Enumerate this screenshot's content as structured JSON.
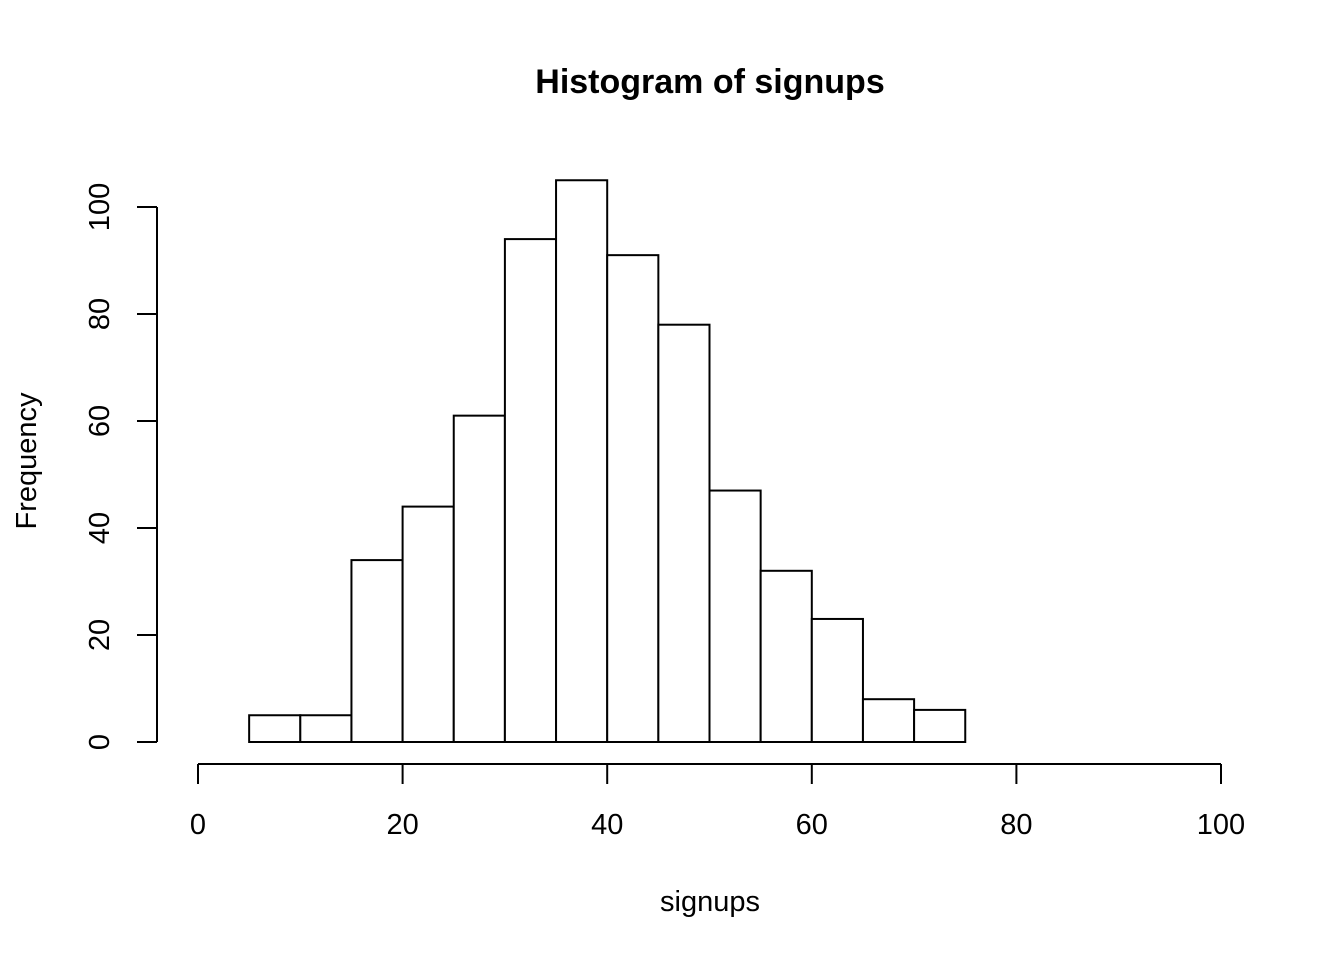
{
  "chart_data": {
    "type": "bar",
    "title": "Histogram of signups",
    "xlabel": "signups",
    "ylabel": "Frequency",
    "xlim": [
      0,
      100
    ],
    "ylim": [
      0,
      105
    ],
    "x_ticks": [
      0,
      20,
      40,
      60,
      80,
      100
    ],
    "y_ticks": [
      0,
      20,
      40,
      60,
      80,
      100
    ],
    "x_tick_labels": [
      "0",
      "20",
      "40",
      "60",
      "80",
      "100"
    ],
    "y_tick_labels": [
      "0",
      "20",
      "40",
      "60",
      "80",
      "100"
    ],
    "grid": false,
    "legend": "none",
    "bins": [
      {
        "start": 5,
        "end": 10,
        "count": 5
      },
      {
        "start": 10,
        "end": 15,
        "count": 5
      },
      {
        "start": 15,
        "end": 20,
        "count": 34
      },
      {
        "start": 20,
        "end": 25,
        "count": 44
      },
      {
        "start": 25,
        "end": 30,
        "count": 61
      },
      {
        "start": 30,
        "end": 35,
        "count": 94
      },
      {
        "start": 35,
        "end": 40,
        "count": 105
      },
      {
        "start": 40,
        "end": 45,
        "count": 91
      },
      {
        "start": 45,
        "end": 50,
        "count": 78
      },
      {
        "start": 50,
        "end": 55,
        "count": 47
      },
      {
        "start": 55,
        "end": 60,
        "count": 32
      },
      {
        "start": 60,
        "end": 65,
        "count": 23
      },
      {
        "start": 65,
        "end": 70,
        "count": 8
      },
      {
        "start": 70,
        "end": 75,
        "count": 6
      }
    ],
    "colors": {
      "bar_fill": "#ffffff",
      "bar_stroke": "#000000",
      "axis": "#000000",
      "background": "#ffffff"
    }
  }
}
